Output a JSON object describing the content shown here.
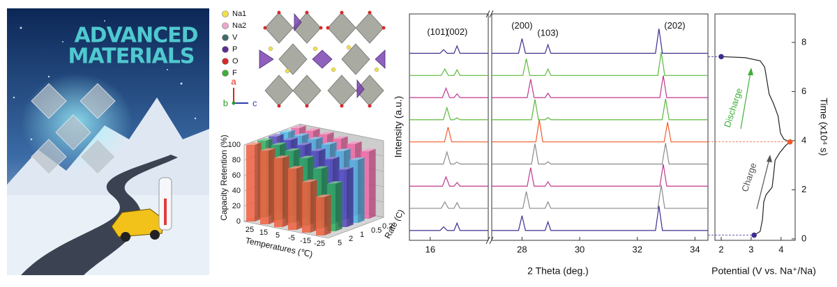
{
  "cover": {
    "title_lines": [
      "ADVANCED",
      "MATERIALS"
    ]
  },
  "structure": {
    "legend": [
      {
        "label": "Na1",
        "color": "#f2df4a"
      },
      {
        "label": "Na2",
        "color": "#e9a7c9"
      },
      {
        "label": "V",
        "color": "#3e6c68"
      },
      {
        "label": "P",
        "color": "#5b2d90"
      },
      {
        "label": "O",
        "color": "#d8282a"
      },
      {
        "label": "F",
        "color": "#3fae3a"
      }
    ],
    "axes": [
      {
        "label": "a",
        "color": "#e02020"
      },
      {
        "label": "b",
        "color": "#2e9a2e"
      },
      {
        "label": "c",
        "color": "#2a3fb0"
      }
    ]
  },
  "chart_data": [
    {
      "type": "bar3d",
      "ylabel": "Capacity Retention (%)",
      "xlabel": "Temperatures (℃)",
      "zlabel": "Rate (C)",
      "categories": [
        "25",
        "15",
        "5",
        "-5",
        "-15",
        "-25"
      ],
      "series": [
        {
          "name": "5",
          "color": "#f2603f",
          "values": [
            100,
            96,
            90,
            80,
            66,
            50
          ]
        },
        {
          "name": "2",
          "color": "#2fae5f",
          "values": [
            100,
            98,
            94,
            88,
            78,
            62
          ]
        },
        {
          "name": "1",
          "color": "#5a48c0",
          "values": [
            100,
            99,
            96,
            92,
            85,
            75
          ]
        },
        {
          "name": "0.5",
          "color": "#4bb6e6",
          "values": [
            100,
            99,
            98,
            95,
            90,
            82
          ]
        },
        {
          "name": "0.2",
          "color": "#f068a6",
          "values": [
            100,
            100,
            99,
            97,
            94,
            88
          ]
        }
      ],
      "ylim": [
        0,
        100
      ],
      "yticks": [
        0,
        20,
        40,
        60,
        80,
        100
      ]
    },
    {
      "type": "line",
      "xlabel": "2 Theta (deg.)",
      "ylabel": "Intensity (a.u.)",
      "xlim": [
        15.3,
        34.45
      ],
      "xbreak": [
        17.95,
        26.95
      ],
      "xticks": [
        16,
        28,
        30,
        32,
        34
      ],
      "ylim": [
        0,
        9.2
      ],
      "annotations": [
        {
          "text": "(101)",
          "x": 16.25,
          "y": 8.45
        },
        {
          "text": "(002)",
          "x": 16.9,
          "y": 8.45
        },
        {
          "text": "(200)",
          "x": 28.0,
          "y": 8.7
        },
        {
          "text": "(103)",
          "x": 28.9,
          "y": 8.4
        },
        {
          "text": "(202)",
          "x": 33.3,
          "y": 8.7
        }
      ],
      "series": [
        {
          "color": "#3a2f8f",
          "x": [
            15.3,
            16.33,
            16.45,
            16.57,
            16.8,
            16.9,
            17.0,
            17.95,
            22,
            26.95,
            27.88,
            28.0,
            28.12,
            28.8,
            28.9,
            29.0,
            32.63,
            32.75,
            32.87,
            34.45
          ],
          "values": [
            0.4,
            0.4,
            0.55,
            0.4,
            0.4,
            0.7,
            0.4,
            0.4,
            null,
            0.4,
            0.4,
            1.0,
            0.4,
            0.4,
            0.75,
            0.4,
            0.4,
            1.4,
            0.4,
            0.4
          ]
        },
        {
          "color": "#8a8a8a",
          "x": [
            15.3,
            16.37,
            16.49,
            16.61,
            16.8,
            16.9,
            17.0,
            17.95,
            22,
            26.95,
            28.03,
            28.15,
            28.27,
            28.8,
            28.9,
            29.0,
            32.71,
            32.83,
            32.95,
            34.45
          ],
          "values": [
            1.3,
            1.3,
            1.56,
            1.3,
            1.3,
            1.53,
            1.3,
            1.3,
            null,
            1.3,
            1.3,
            1.98,
            1.3,
            1.3,
            1.56,
            1.3,
            1.3,
            2.25,
            1.3,
            1.3
          ]
        },
        {
          "color": "#c0388f",
          "x": [
            15.3,
            16.41,
            16.53,
            16.65,
            16.8,
            16.9,
            17.0,
            17.95,
            22,
            26.95,
            28.18,
            28.3,
            28.42,
            28.8,
            28.9,
            29.0,
            32.78,
            32.9,
            33.02,
            34.45
          ],
          "values": [
            2.2,
            2.2,
            2.58,
            2.2,
            2.2,
            2.35,
            2.2,
            2.2,
            null,
            2.2,
            2.2,
            2.95,
            2.2,
            2.2,
            2.38,
            2.2,
            2.2,
            3.1,
            2.2,
            2.2
          ]
        },
        {
          "color": "#8a8a8a",
          "x": [
            15.3,
            16.44,
            16.56,
            16.68,
            16.8,
            16.9,
            17.0,
            17.95,
            22,
            26.95,
            28.33,
            28.45,
            28.57,
            28.8,
            28.9,
            29.0,
            32.86,
            32.98,
            33.1,
            34.45
          ],
          "values": [
            3.1,
            3.1,
            3.59,
            3.1,
            3.1,
            3.18,
            3.1,
            3.1,
            null,
            3.1,
            3.1,
            3.93,
            3.1,
            3.1,
            3.19,
            3.1,
            3.1,
            3.95,
            3.1,
            3.1
          ]
        },
        {
          "color": "#f05a28",
          "x": [
            15.3,
            16.48,
            16.6,
            16.72,
            16.8,
            16.9,
            17.0,
            17.95,
            22,
            26.95,
            28.48,
            28.6,
            28.72,
            28.8,
            28.9,
            29.0,
            32.93,
            33.05,
            33.17,
            34.45
          ],
          "values": [
            4.0,
            4.0,
            4.6,
            4.0,
            4.0,
            4.0,
            4.0,
            4.0,
            null,
            4.0,
            4.0,
            4.9,
            4.0,
            4.0,
            4.0,
            4.0,
            4.0,
            4.8,
            4.0,
            4.0
          ]
        },
        {
          "color": "#5cb83c",
          "x": [
            15.3,
            16.44,
            16.56,
            16.68,
            16.8,
            16.9,
            17.0,
            17.95,
            22,
            26.95,
            28.33,
            28.45,
            28.57,
            28.8,
            28.9,
            29.0,
            32.86,
            32.98,
            33.1,
            34.45
          ],
          "values": [
            4.9,
            4.9,
            5.39,
            4.9,
            4.9,
            4.98,
            4.9,
            4.9,
            null,
            4.9,
            4.9,
            5.73,
            4.9,
            4.9,
            4.99,
            4.9,
            4.9,
            5.75,
            4.9,
            4.9
          ]
        },
        {
          "color": "#c0388f",
          "x": [
            15.3,
            16.41,
            16.53,
            16.65,
            16.8,
            16.9,
            17.0,
            17.95,
            22,
            26.95,
            28.18,
            28.3,
            28.42,
            28.8,
            28.9,
            29.0,
            32.78,
            32.9,
            33.02,
            34.45
          ],
          "values": [
            5.8,
            5.8,
            6.18,
            5.8,
            5.8,
            5.95,
            5.8,
            5.8,
            null,
            5.8,
            5.8,
            6.55,
            5.8,
            5.8,
            5.98,
            5.8,
            5.8,
            6.7,
            5.8,
            5.8
          ]
        },
        {
          "color": "#5cb83c",
          "x": [
            15.3,
            16.37,
            16.49,
            16.61,
            16.8,
            16.9,
            17.0,
            17.95,
            22,
            26.95,
            28.03,
            28.15,
            28.27,
            28.8,
            28.9,
            29.0,
            32.71,
            32.83,
            32.95,
            34.45
          ],
          "values": [
            6.7,
            6.7,
            6.96,
            6.7,
            6.7,
            6.93,
            6.7,
            6.7,
            null,
            6.7,
            6.7,
            7.38,
            6.7,
            6.7,
            6.96,
            6.7,
            6.7,
            7.65,
            6.7,
            6.7
          ]
        },
        {
          "color": "#3a2f8f",
          "x": [
            15.3,
            16.33,
            16.45,
            16.57,
            16.8,
            16.9,
            17.0,
            17.95,
            22,
            26.95,
            27.88,
            28.0,
            28.12,
            28.8,
            28.9,
            29.0,
            32.63,
            32.75,
            32.87,
            34.45
          ],
          "values": [
            7.6,
            7.6,
            7.75,
            7.6,
            7.6,
            7.9,
            7.6,
            7.6,
            null,
            7.6,
            7.6,
            8.2,
            7.6,
            7.6,
            7.95,
            7.6,
            7.6,
            8.6,
            7.6,
            7.6
          ]
        }
      ]
    },
    {
      "type": "line",
      "xlabel": "Potential (V vs. Na⁺/Na)",
      "ylabel": "Time (x10⁴ s)",
      "y_axis_side": "right",
      "xlim": [
        1.79,
        4.47
      ],
      "xticks": [
        2,
        3,
        4
      ],
      "ylim": [
        -0.06,
        9.16
      ],
      "yticks": [
        0,
        2,
        4,
        6,
        8
      ],
      "annotations": [
        {
          "text": "Charge",
          "x": 2.95,
          "y": 2.5,
          "color": "#555555"
        },
        {
          "text": "Discharge",
          "x": 2.42,
          "y": 5.33,
          "color": "#3fae3a"
        }
      ],
      "series": [
        {
          "color": "#222222",
          "x": [
            3.1,
            3.3,
            3.38,
            3.42,
            3.5,
            3.7,
            3.75,
            3.8,
            3.95,
            4.15,
            4.3,
            4.1,
            3.98,
            3.9,
            3.75,
            3.6,
            3.52,
            3.45,
            3.3,
            2.8,
            2.0
          ],
          "values": [
            0.15,
            0.3,
            0.8,
            1.5,
            1.8,
            2.1,
            2.6,
            3.2,
            3.5,
            3.8,
            3.95,
            4.05,
            4.3,
            5.0,
            5.5,
            5.9,
            6.5,
            7.0,
            7.25,
            7.38,
            7.42
          ]
        }
      ],
      "points": {
        "x": [
          3.1,
          4.3,
          2.0
        ],
        "values": [
          0.15,
          3.95,
          7.42
        ],
        "colors": [
          "#3a2f8f",
          "#f05a28",
          "#3a2f8f"
        ]
      }
    }
  ]
}
